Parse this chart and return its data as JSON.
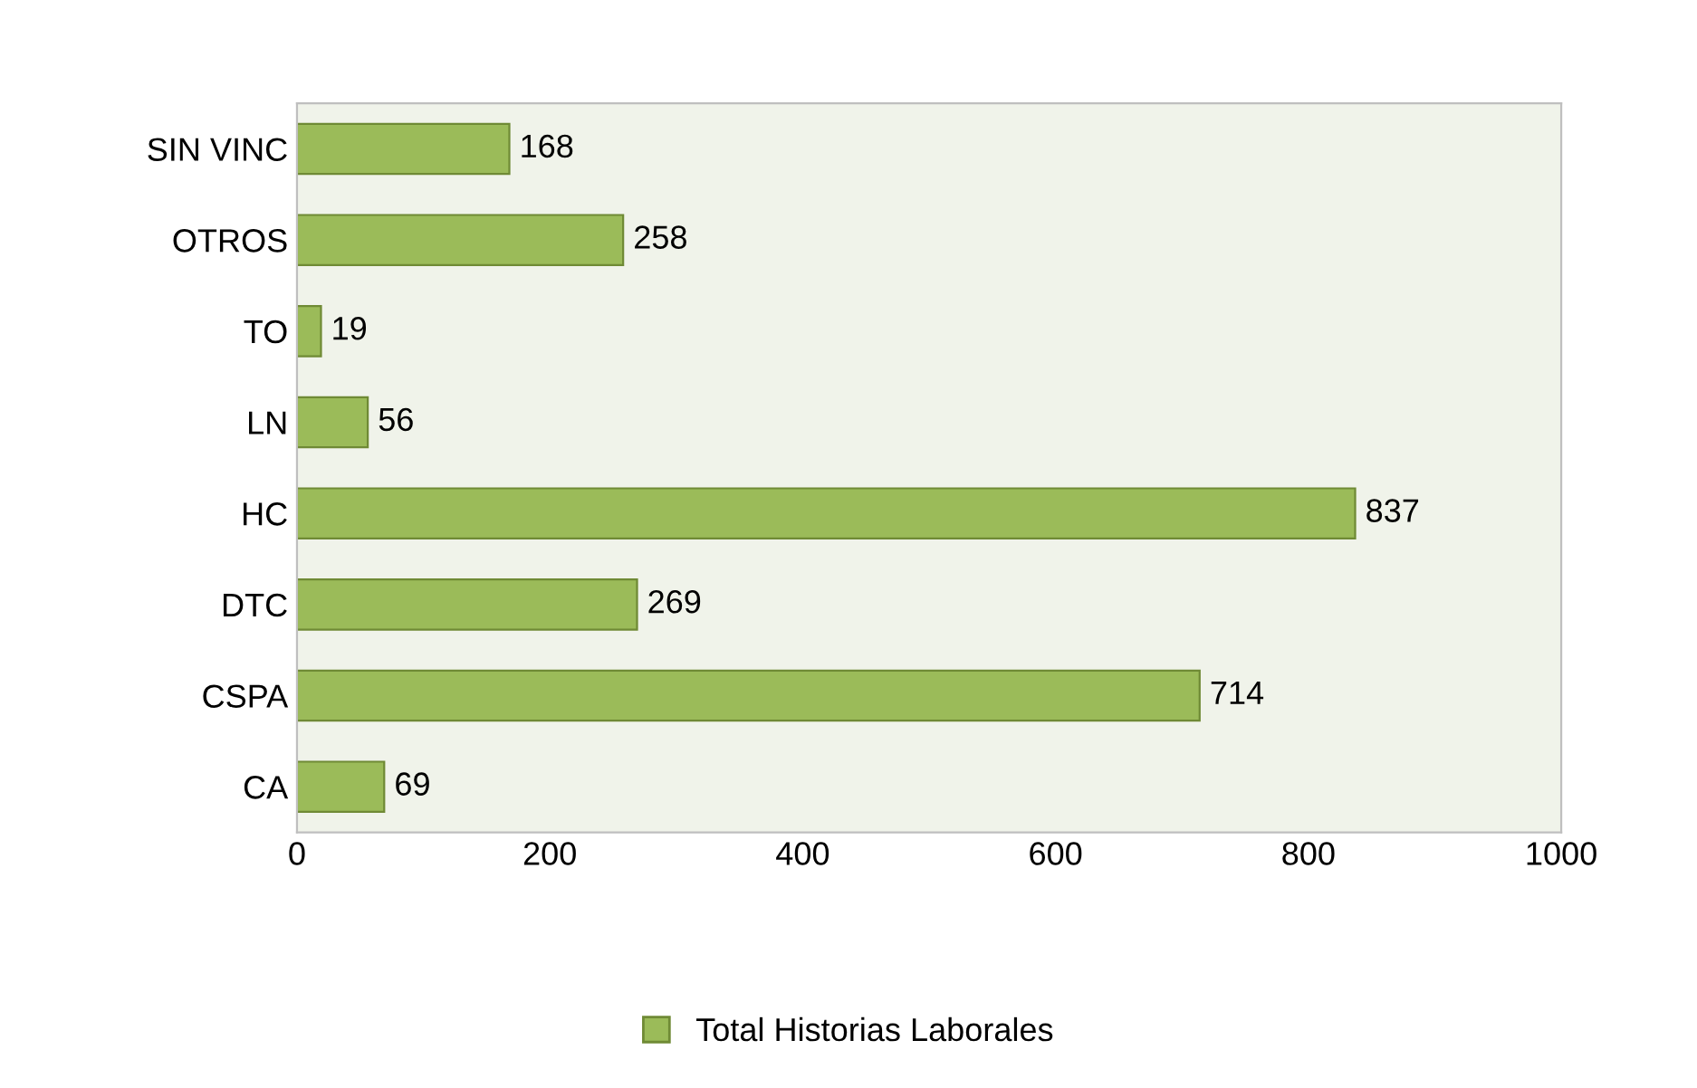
{
  "chart_data": {
    "type": "bar",
    "orientation": "horizontal",
    "categories": [
      "SIN VINC",
      "OTROS",
      "TO",
      "LN",
      "HC",
      "DTC",
      "CSPA",
      "CA"
    ],
    "series": [
      {
        "name": "Total Historias Laborales",
        "color": "#9bbb59",
        "values": [
          168,
          258,
          19,
          56,
          837,
          269,
          714,
          69
        ]
      }
    ],
    "xlim": [
      0,
      1000
    ],
    "xticks": [
      0,
      200,
      400,
      600,
      800,
      1000
    ],
    "data_labels": true,
    "legend": "bottom",
    "grid": false
  }
}
